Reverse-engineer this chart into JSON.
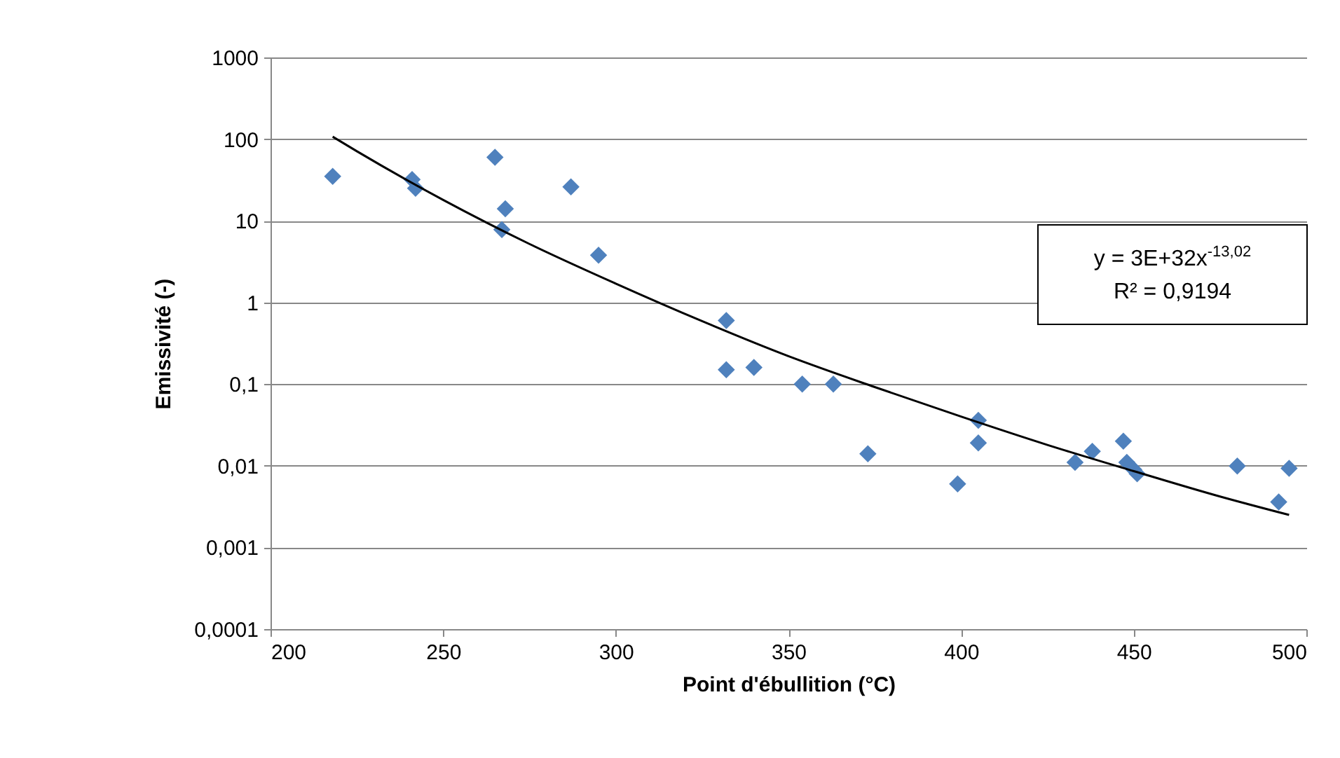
{
  "chart_data": {
    "type": "scatter",
    "xlabel": "Point d'ébullition (°C)",
    "ylabel": "Emissivité (-)",
    "log": "y",
    "grid": "y",
    "xlim": [
      200,
      500
    ],
    "xticks": [
      200,
      250,
      300,
      350,
      400,
      450,
      500
    ],
    "ylim": [
      0.0001,
      1000
    ],
    "yticks": [
      {
        "value": 0.0001,
        "label": "0,0001"
      },
      {
        "value": 0.001,
        "label": "0,001"
      },
      {
        "value": 0.01,
        "label": "0,01"
      },
      {
        "value": 0.1,
        "label": "0,1"
      },
      1,
      10,
      100,
      1000
    ],
    "annotations": [
      "y = 3E+32x$^{-13,02}$",
      "R² = 0,9194"
    ],
    "series": [
      {
        "marker": "diamond",
        "color": "#4f81bd",
        "x": [
          218,
          241,
          242,
          265,
          267,
          268,
          287,
          295,
          332,
          332,
          340,
          354,
          363,
          373,
          399,
          405,
          405,
          433,
          438,
          447,
          448,
          450,
          451,
          480,
          492,
          495
        ],
        "values": [
          35,
          32,
          25,
          60,
          7.8,
          14,
          26,
          3.8,
          0.6,
          0.15,
          0.16,
          0.1,
          0.1,
          0.014,
          0.006,
          0.036,
          0.019,
          0.011,
          0.015,
          0.02,
          0.011,
          0.009,
          0.008,
          0.0099,
          0.0036,
          0.0093
        ]
      },
      {
        "type": "line",
        "marker": "none",
        "color": "#000000",
        "x": [
          218,
          225,
          250,
          275,
          300,
          325,
          350,
          375,
          400,
          425,
          450,
          475,
          495
        ],
        "values": [
          107,
          71,
          18,
          5.2,
          1.7,
          0.59,
          0.22,
          0.092,
          0.04,
          0.018,
          0.0086,
          0.0042,
          0.0025
        ]
      }
    ]
  }
}
